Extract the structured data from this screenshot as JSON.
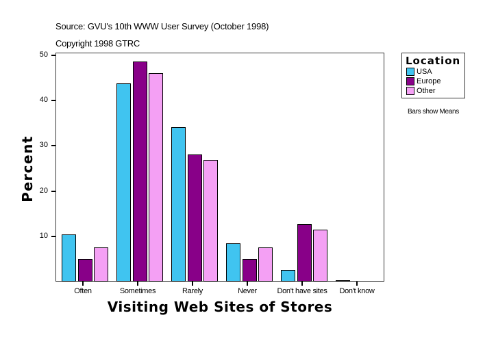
{
  "header": {
    "source": "Source: GVU's 10th WWW User Survey (October 1998)",
    "copyright": "Copyright 1998 GTRC"
  },
  "legend": {
    "title": "Location",
    "items": [
      {
        "label": "USA",
        "color": "#40c4f0"
      },
      {
        "label": "Europe",
        "color": "#880088"
      },
      {
        "label": "Other",
        "color": "#f4a0f4"
      }
    ],
    "note": "Bars show Means"
  },
  "axes": {
    "xlabel": "Visiting Web Sites of Stores",
    "ylabel": "Percent",
    "yticks": [
      "10",
      "20",
      "30",
      "40",
      "50"
    ]
  },
  "chart_data": {
    "type": "bar",
    "title": "Visiting Web Sites of Stores",
    "subtitle": "Source: GVU's 10th WWW User Survey (October 1998)",
    "annotations": [
      "Copyright 1998 GTRC",
      "Bars show Means"
    ],
    "xlabel": "Visiting Web Sites of Stores",
    "ylabel": "Percent",
    "ylim": [
      0,
      50
    ],
    "yticks": [
      10,
      20,
      30,
      40,
      50
    ],
    "grid": false,
    "legend_position": "right",
    "legend_title": "Location",
    "categories": [
      "Often",
      "Sometimes",
      "Rarely",
      "Never",
      "Don't have sites",
      "Don't know"
    ],
    "series": [
      {
        "name": "USA",
        "color": "#40c4f0",
        "values": [
          10.4,
          43.8,
          34.1,
          8.5,
          2.6,
          0.3
        ]
      },
      {
        "name": "Europe",
        "color": "#880088",
        "values": [
          5.0,
          48.6,
          28.1,
          5.0,
          12.7,
          0.0
        ]
      },
      {
        "name": "Other",
        "color": "#f4a0f4",
        "values": [
          7.5,
          46.0,
          26.9,
          7.5,
          11.5,
          0.0
        ]
      }
    ]
  }
}
